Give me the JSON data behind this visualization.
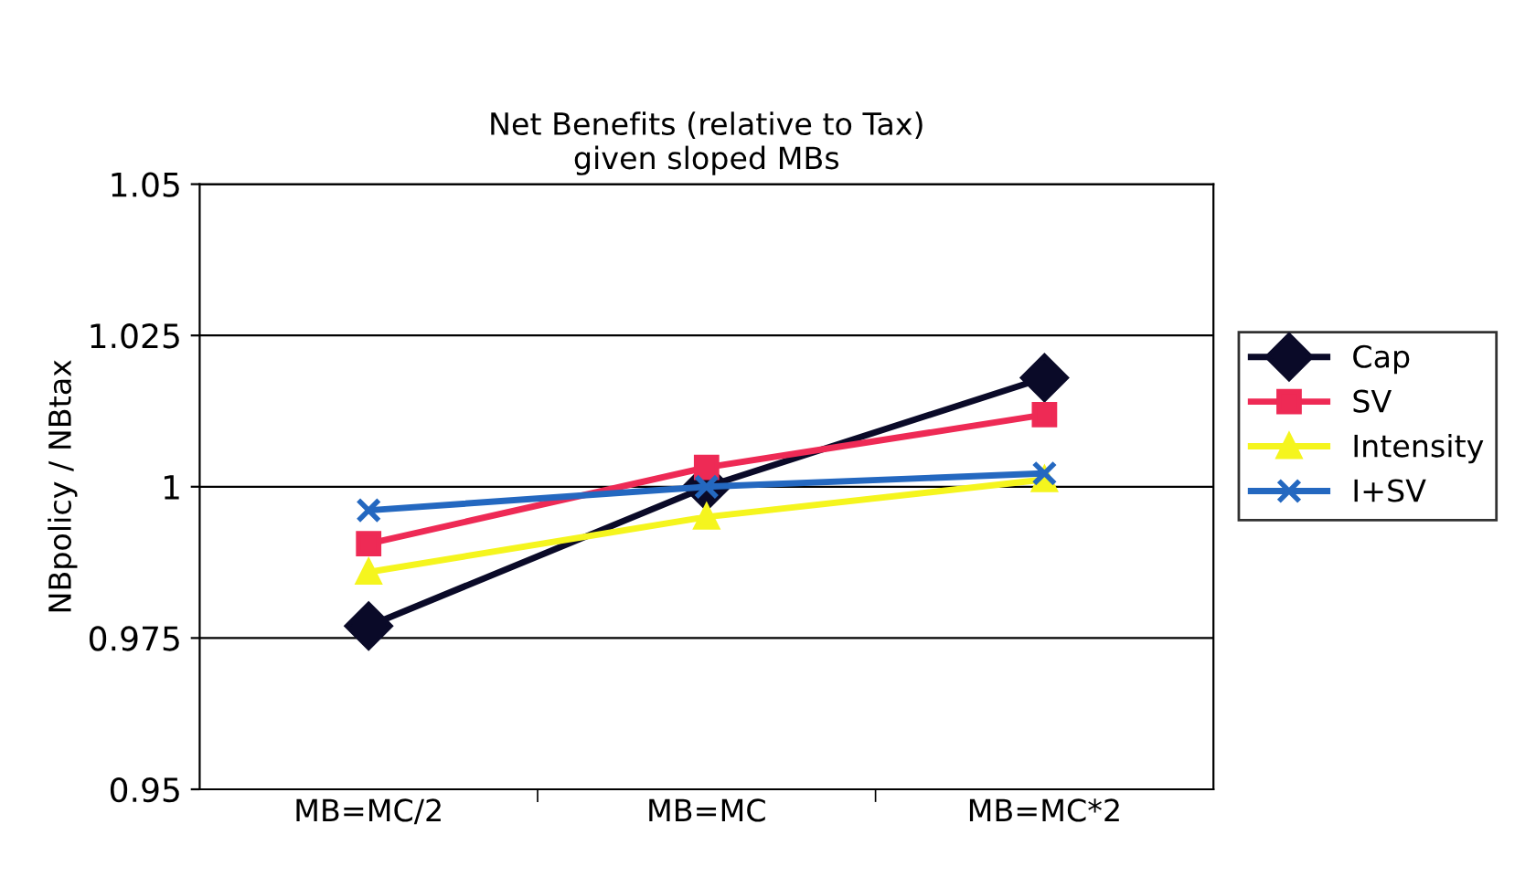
{
  "chart_data": {
    "type": "line",
    "title": "Net Benefits (relative to Tax)\ngiven sloped MBs",
    "ylabel": "NBpolicy / NBtax",
    "categories": [
      "MB=MC/2",
      "MB=MC",
      "MB=MC*2"
    ],
    "series": [
      {
        "name": "Cap",
        "color": "#0a0a28",
        "marker": "diamond",
        "values": [
          0.977,
          1.0,
          1.018
        ]
      },
      {
        "name": "SV",
        "color": "#ee2a55",
        "marker": "square",
        "values": [
          0.9906,
          1.0032,
          1.0119
        ]
      },
      {
        "name": "Intensity",
        "color": "#f5f51e",
        "marker": "triangle",
        "values": [
          0.9859,
          0.995,
          1.0012
        ]
      },
      {
        "name": "I+SV",
        "color": "#2468c0",
        "marker": "cross",
        "values": [
          0.9961,
          1.0,
          1.0022
        ]
      }
    ],
    "ylim": [
      0.95,
      1.05
    ],
    "yticks": [
      0.95,
      0.975,
      1,
      1.025,
      1.05
    ],
    "grid": "y",
    "legend": "right"
  }
}
